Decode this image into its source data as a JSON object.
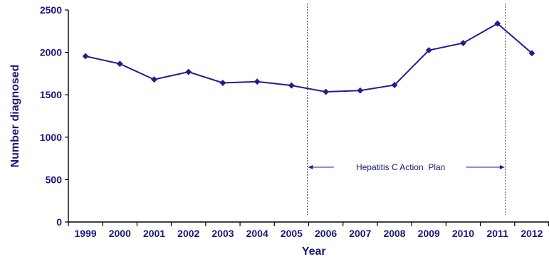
{
  "chart_data": {
    "type": "line",
    "title": "",
    "xlabel": "Year",
    "ylabel": "Number diagnosed",
    "categories": [
      "1999",
      "2000",
      "2001",
      "2002",
      "2003",
      "2004",
      "2005",
      "2006",
      "2007",
      "2008",
      "2009",
      "2010",
      "2011",
      "2012"
    ],
    "series": [
      {
        "values": [
          1955,
          1865,
          1680,
          1770,
          1640,
          1655,
          1610,
          1535,
          1550,
          1615,
          2025,
          2110,
          2340,
          1990
        ]
      }
    ],
    "ylim": [
      0,
      2500
    ],
    "yticks": [
      "0",
      "500",
      "1000",
      "1500",
      "2000",
      "2500"
    ],
    "grid": false,
    "legend": "none",
    "marker": "diamond",
    "annotation": {
      "label": "Hepatitis C Action  Plan",
      "start": "2006",
      "end": "2011"
    },
    "colors": {
      "series": "#1f1f8c",
      "text": "#1a1a7a",
      "axis": "#000000",
      "period_line": "#444444"
    }
  }
}
